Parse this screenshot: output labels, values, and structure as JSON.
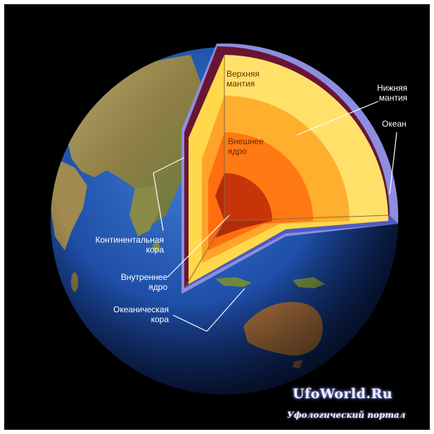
{
  "labels": {
    "upper_mantle": [
      "Верхняя",
      "мантия"
    ],
    "lower_mantle": [
      "Нижняя",
      "мантия"
    ],
    "ocean": [
      "Океан"
    ],
    "outer_core": [
      "Внешнее",
      "ядро"
    ],
    "continental_crust": [
      "Континентальная",
      "кора"
    ],
    "inner_core": [
      "Внутреннее",
      "ядро"
    ],
    "oceanic_crust": [
      "Океаническая",
      "кора"
    ]
  },
  "watermark": {
    "title": "UfoWorld.Ru",
    "subtitle": "Уфологический портал"
  },
  "colors": {
    "background": "#000000",
    "ocean": "#1f4fa8",
    "land": "#9a8a4a",
    "crust": "#6a1434",
    "ocean_layer": "#8c8ee0",
    "upper_mantle": "#ffe16a",
    "lower_mantle": "#ffae2e",
    "outer_core": "#ff7a12",
    "inner_core": "#c8340a"
  }
}
